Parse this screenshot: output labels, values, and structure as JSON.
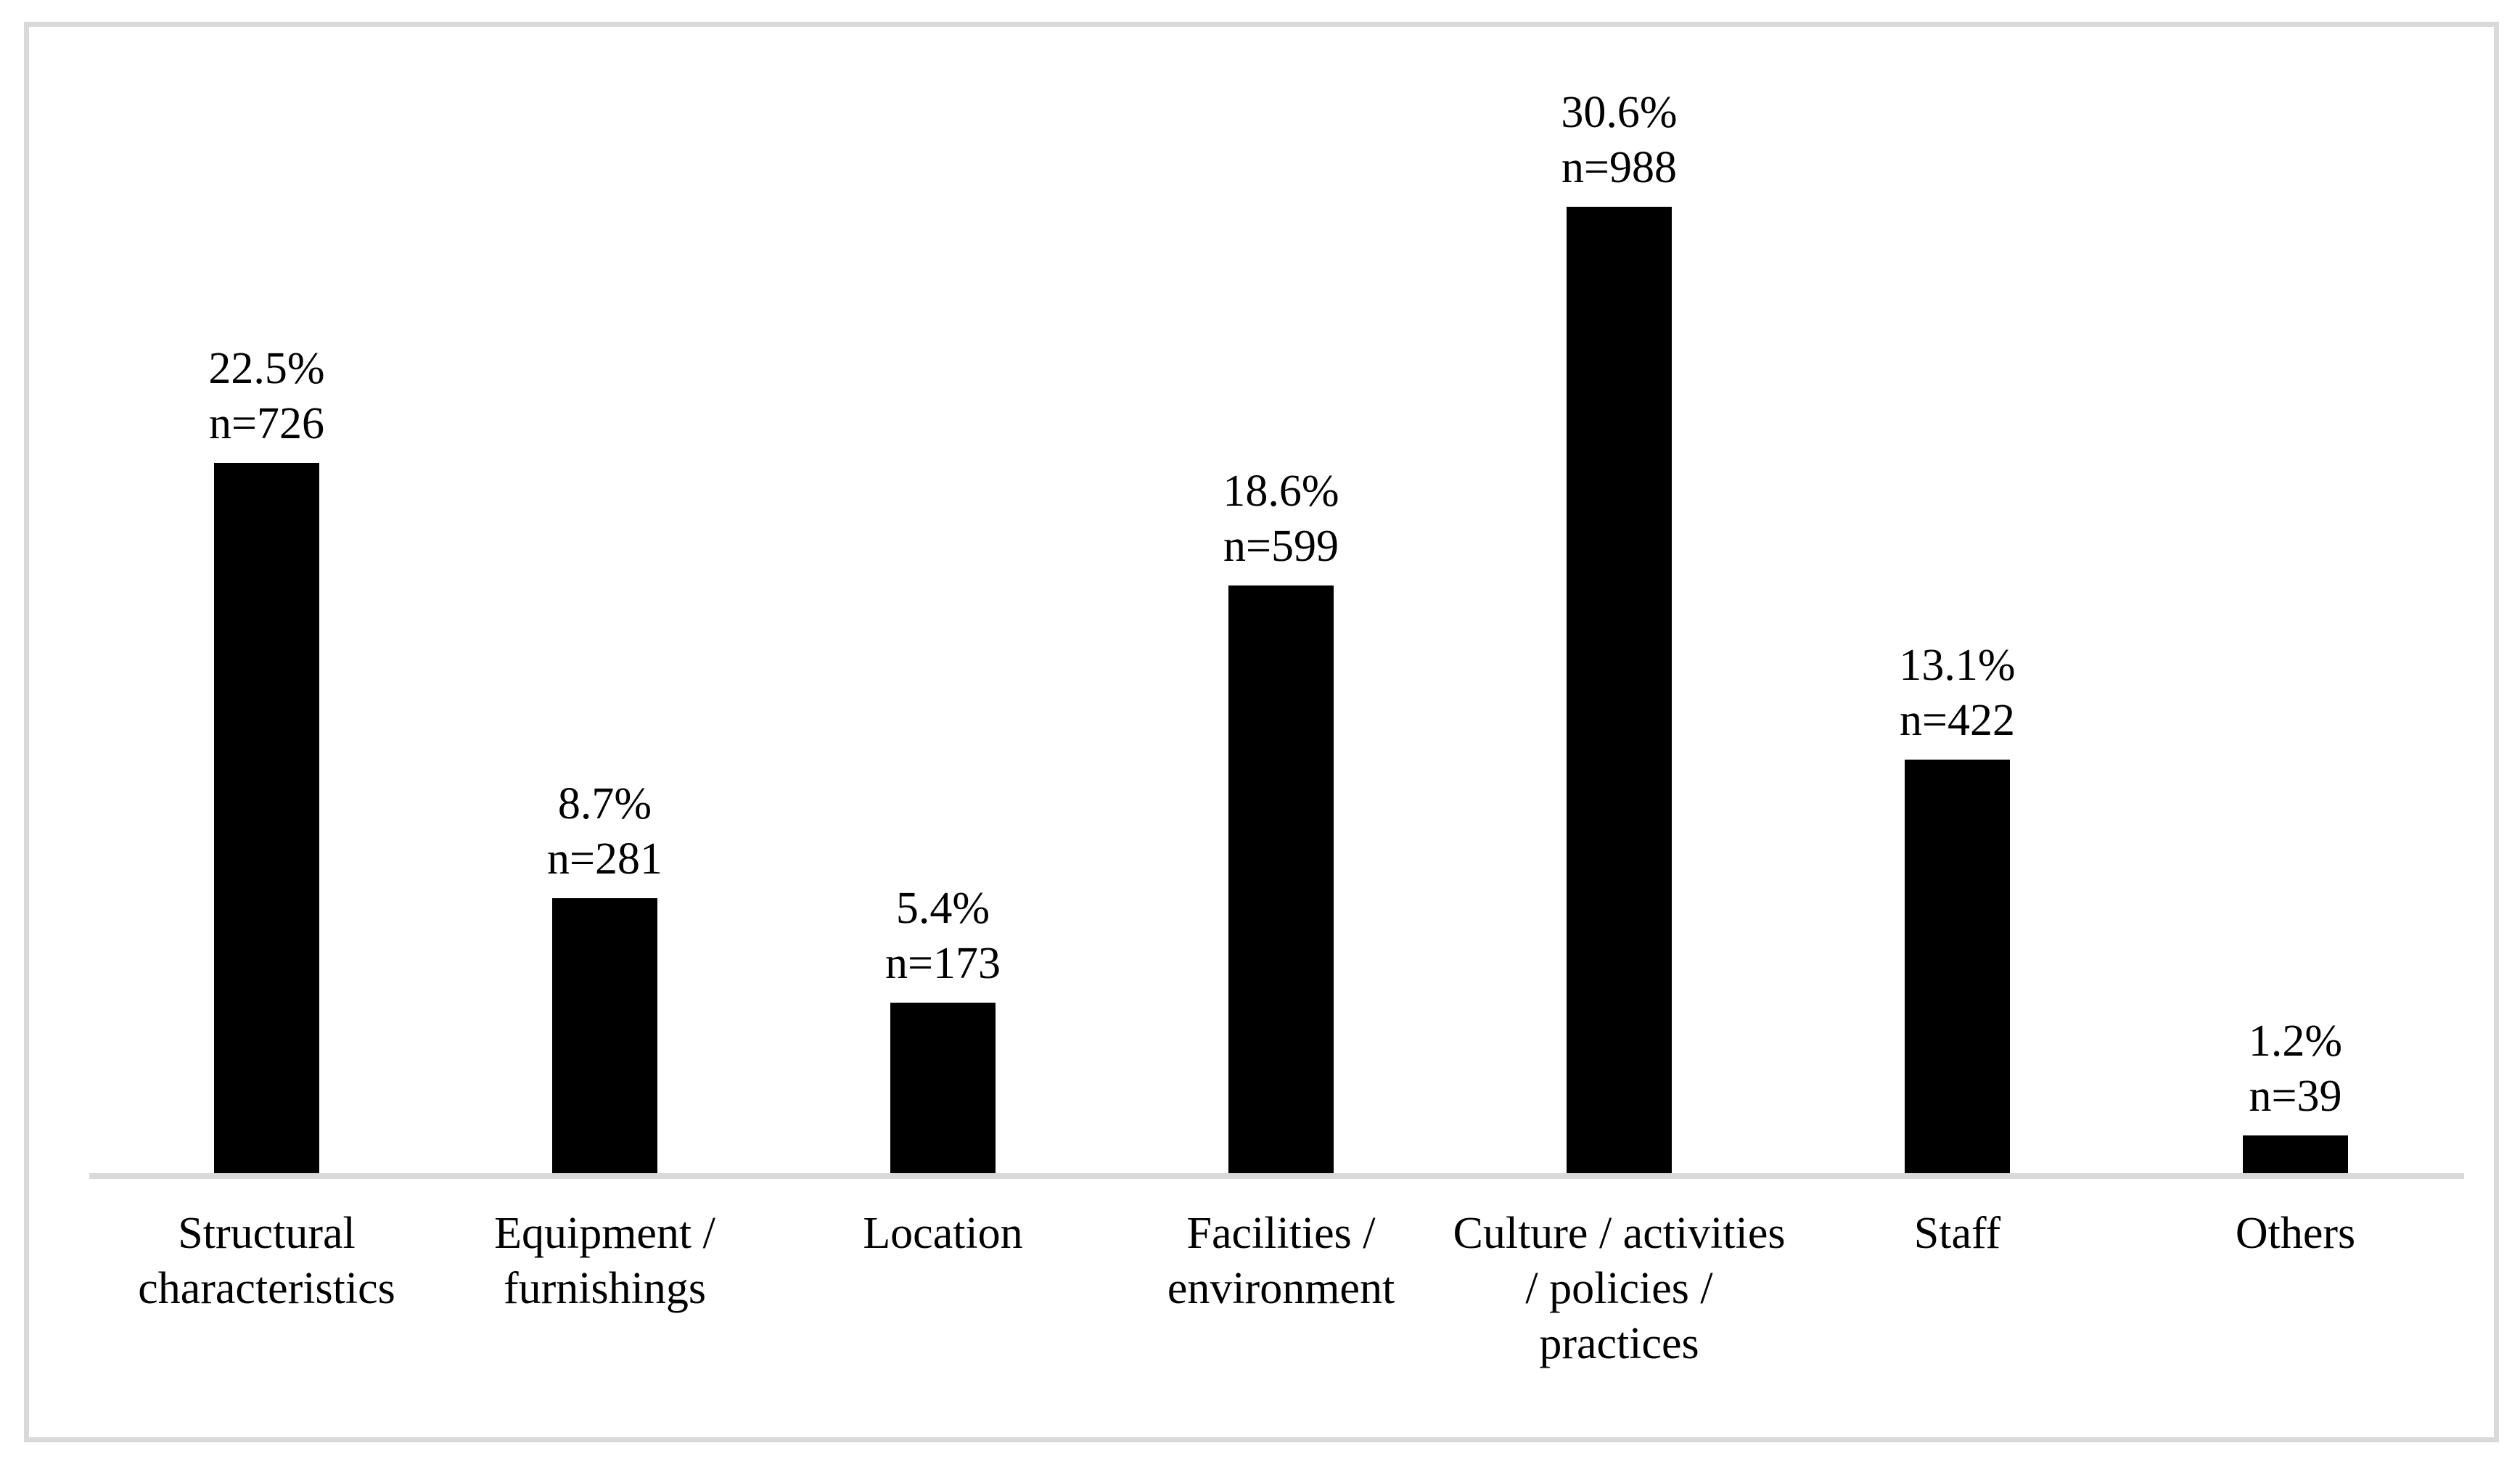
{
  "figure": {
    "background_color": "#ffffff",
    "frame_border_color": "#d9d9d9"
  },
  "chart_data": {
    "type": "bar",
    "title": "",
    "xlabel": "",
    "ylabel": "",
    "grid": false,
    "legend_position": "none",
    "orientation": "vertical",
    "ylim": [
      0,
      32
    ],
    "bar_color": "#000000",
    "axis_line_color": "#d9d9d9",
    "text_color": "#000000",
    "categories": [
      "Structural characteristics",
      "Equipment / furnishings",
      "Location",
      "Facilities / environment",
      "Culture / activities / policies / practices",
      "Staff",
      "Others"
    ],
    "series": [
      {
        "name": "percent",
        "values": [
          22.5,
          8.7,
          5.4,
          18.6,
          30.6,
          13.1,
          1.2
        ]
      },
      {
        "name": "n",
        "values": [
          726,
          281,
          173,
          599,
          988,
          422,
          39
        ]
      }
    ],
    "bars": [
      {
        "category": "Structural characteristics",
        "percent": 22.5,
        "n": 726,
        "percent_label": "22.5%",
        "n_label": "n=726"
      },
      {
        "category": "Equipment / furnishings",
        "percent": 8.7,
        "n": 281,
        "percent_label": "8.7%",
        "n_label": "n=281"
      },
      {
        "category": "Location",
        "percent": 5.4,
        "n": 173,
        "percent_label": "5.4%",
        "n_label": "n=173"
      },
      {
        "category": "Facilities / environment",
        "percent": 18.6,
        "n": 599,
        "percent_label": "18.6%",
        "n_label": "n=599"
      },
      {
        "category": "Culture / activities / policies / practices",
        "percent": 30.6,
        "n": 988,
        "percent_label": "30.6%",
        "n_label": "n=988"
      },
      {
        "category": "Staff",
        "percent": 13.1,
        "n": 422,
        "percent_label": "13.1%",
        "n_label": "n=422"
      },
      {
        "category": "Others",
        "percent": 1.2,
        "n": 39,
        "percent_label": "1.2%",
        "n_label": "n=39"
      }
    ]
  }
}
